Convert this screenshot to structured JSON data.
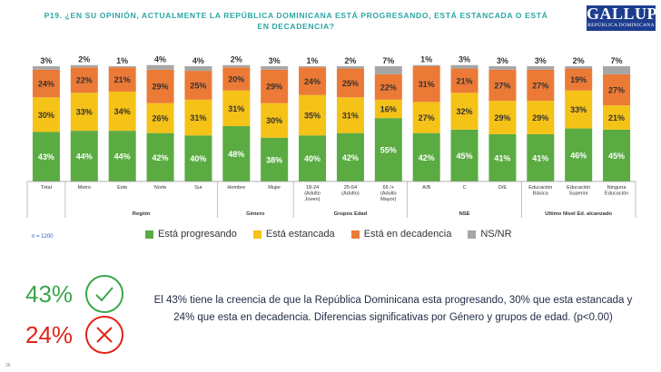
{
  "title": "P19.  ¿EN SU OPINIÓN, ACTUALMENTE LA REPÚBLICA DOMINICANA ESTÁ PROGRESANDO, ESTÁ ESTANCADA O ESTÁ EN DECADENCIA?",
  "logo": {
    "name": "GALLUP",
    "sub": "REPÚBLICA DOMINICANA"
  },
  "n_label": "n = 1200",
  "summary": {
    "big_green": "43%",
    "big_red": "24%",
    "text": "El 43% tiene la creencia de que la República Dominicana esta progresando, 30% que esta estancada y 24% que esta en decadencia.  Diferencias significativas por Género y grupos de edad. (p<0.00)",
    "icon_green": "check-circle-icon",
    "icon_red": "x-circle-icon"
  },
  "page_number": "36",
  "colors": {
    "progresando": "#5aab42",
    "estancada": "#f5c218",
    "decadencia": "#ec7a37",
    "nsnr": "#a6a6a6",
    "title": "#2aa7a4"
  },
  "chart_data": {
    "type": "bar",
    "stacked": true,
    "ylim": [
      0,
      100
    ],
    "categories": [
      "Total",
      "Metro",
      "Este",
      "Norte",
      "Sur",
      "Hombre",
      "Mujer",
      "18-24 (Adulto Joven)",
      "25-64 (Adulto)",
      "65 /+ (Adulto Mayor)",
      "A/B",
      "C",
      "D/E",
      "Educación Básica",
      "Educación Superior",
      "Ninguna Educación"
    ],
    "groups": [
      {
        "name": "",
        "count": 1
      },
      {
        "name": "Región",
        "count": 4
      },
      {
        "name": "Género",
        "count": 2
      },
      {
        "name": "Grupos Edad",
        "count": 3
      },
      {
        "name": "NSE",
        "count": 3
      },
      {
        "name": "Ultimo Nivel Ed. alcanzado",
        "count": 3
      }
    ],
    "series": [
      {
        "name": "Está progresando",
        "values": [
          43,
          44,
          44,
          42,
          40,
          48,
          38,
          40,
          42,
          55,
          42,
          45,
          41,
          41,
          46,
          45
        ]
      },
      {
        "name": "Está estancada",
        "values": [
          30,
          33,
          34,
          26,
          31,
          31,
          30,
          35,
          31,
          16,
          27,
          32,
          29,
          29,
          33,
          21
        ]
      },
      {
        "name": "Está en decadencia",
        "values": [
          24,
          22,
          21,
          29,
          25,
          20,
          29,
          24,
          25,
          22,
          31,
          21,
          27,
          27,
          19,
          27
        ]
      },
      {
        "name": "NS/NR",
        "values": [
          3,
          2,
          1,
          4,
          4,
          2,
          3,
          1,
          2,
          7,
          1,
          3,
          3,
          3,
          2,
          7
        ]
      }
    ],
    "value_labels": [
      [
        "43%",
        "44%",
        "44%",
        "42%",
        "40%",
        "48%",
        "38%",
        "40%",
        "42%",
        "55%",
        "42%",
        "45%",
        "41%",
        "41%",
        "46%",
        "45%"
      ],
      [
        "30%",
        "33%",
        "34%",
        "26%",
        "31%",
        "31%",
        "30%",
        "35%",
        "31%",
        "16%",
        "27%",
        "32%",
        "29%",
        "29%",
        "33%",
        "21%"
      ],
      [
        "24%",
        "22%",
        "21%",
        "29%",
        "25%",
        "20%",
        "29%",
        "24%",
        "25%",
        "22%",
        "31%",
        "21%",
        "27%",
        "27%",
        "19%",
        "27%"
      ],
      [
        "3%",
        "2%",
        "1%",
        "4%",
        "4%",
        "2%",
        "3%",
        "1%",
        "2%",
        "7%",
        "1%",
        "3%",
        "3%",
        "3%",
        "2%",
        "7%"
      ]
    ],
    "legend_position": "bottom"
  }
}
